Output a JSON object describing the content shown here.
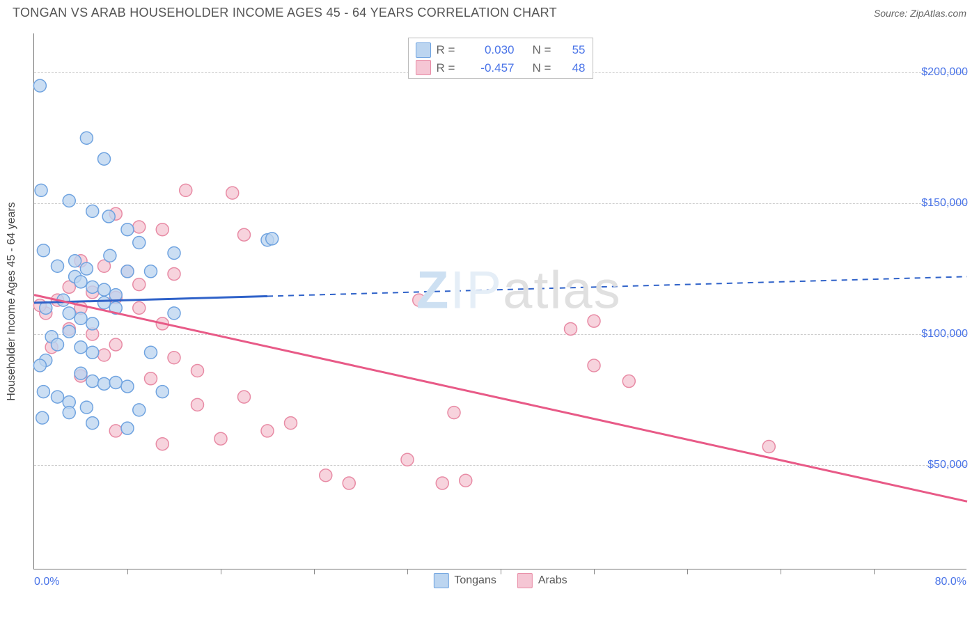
{
  "header": {
    "title": "TONGAN VS ARAB HOUSEHOLDER INCOME AGES 45 - 64 YEARS CORRELATION CHART",
    "source": "Source: ZipAtlas.com"
  },
  "watermark": {
    "z": "Z",
    "ip": "IP",
    "rest": "atlas"
  },
  "chart": {
    "type": "scatter",
    "background_color": "#ffffff",
    "grid_color": "#cccccc",
    "axis_color": "#777777",
    "text_color": "#555555",
    "value_color": "#4a74e8",
    "xlim": [
      0,
      80
    ],
    "ylim": [
      10000,
      215000
    ],
    "x_axis": {
      "label_left": "0.0%",
      "label_right": "80.0%",
      "tick_positions": [
        8,
        16,
        24,
        32,
        40,
        48,
        56,
        64,
        72
      ]
    },
    "y_axis": {
      "title": "Householder Income Ages 45 - 64 years",
      "gridlines": [
        50000,
        100000,
        150000,
        200000
      ],
      "labels": [
        "$50,000",
        "$100,000",
        "$150,000",
        "$200,000"
      ]
    },
    "series": [
      {
        "name": "Tongans",
        "color_stroke": "#6fa3e0",
        "color_fill": "#bcd5f0",
        "line_color": "#2f62c9",
        "marker_radius": 9,
        "stroke_width": 1.5,
        "opacity": 0.78,
        "R": "0.030",
        "N": "55",
        "trend": {
          "x1": 0,
          "y1": 112000,
          "x2": 80,
          "y2": 122000,
          "solid_until_x": 20
        },
        "points": [
          [
            0.5,
            195000
          ],
          [
            4.5,
            175000
          ],
          [
            6,
            167000
          ],
          [
            0.6,
            155000
          ],
          [
            3,
            151000
          ],
          [
            5,
            147000
          ],
          [
            6.4,
            145000
          ],
          [
            8,
            140000
          ],
          [
            9,
            135000
          ],
          [
            12,
            131000
          ],
          [
            20,
            136000
          ],
          [
            20.4,
            136500
          ],
          [
            0.8,
            132000
          ],
          [
            2,
            126000
          ],
          [
            3.5,
            122000
          ],
          [
            4,
            120000
          ],
          [
            5,
            118000
          ],
          [
            6,
            117000
          ],
          [
            7,
            115000
          ],
          [
            3,
            108000
          ],
          [
            4,
            106000
          ],
          [
            5,
            104000
          ],
          [
            3,
            101000
          ],
          [
            6,
            112000
          ],
          [
            7,
            110000
          ],
          [
            1.5,
            99000
          ],
          [
            2,
            96000
          ],
          [
            4,
            95000
          ],
          [
            5,
            93000
          ],
          [
            10,
            93000
          ],
          [
            1,
            110000
          ],
          [
            2.5,
            113000
          ],
          [
            3.5,
            128000
          ],
          [
            4.5,
            125000
          ],
          [
            8,
            124000
          ],
          [
            1,
            90000
          ],
          [
            0.5,
            88000
          ],
          [
            4,
            85000
          ],
          [
            5,
            82000
          ],
          [
            6,
            81000
          ],
          [
            7,
            81500
          ],
          [
            8,
            80000
          ],
          [
            0.8,
            78000
          ],
          [
            2,
            76000
          ],
          [
            3,
            74000
          ],
          [
            4.5,
            72000
          ],
          [
            3,
            70000
          ],
          [
            0.7,
            68000
          ],
          [
            5,
            66000
          ],
          [
            8,
            64000
          ],
          [
            9,
            71000
          ],
          [
            11,
            78000
          ],
          [
            12,
            108000
          ],
          [
            6.5,
            130000
          ],
          [
            10,
            124000
          ]
        ]
      },
      {
        "name": "Arabs",
        "color_stroke": "#e88ba5",
        "color_fill": "#f5c6d4",
        "line_color": "#e85a87",
        "marker_radius": 9,
        "stroke_width": 1.5,
        "opacity": 0.78,
        "R": "-0.457",
        "N": "48",
        "trend": {
          "x1": 0,
          "y1": 115000,
          "x2": 80,
          "y2": 36000,
          "solid_until_x": 80
        },
        "points": [
          [
            13,
            155000
          ],
          [
            17,
            154000
          ],
          [
            7,
            146000
          ],
          [
            9,
            141000
          ],
          [
            11,
            140000
          ],
          [
            18,
            138000
          ],
          [
            4,
            128000
          ],
          [
            6,
            126000
          ],
          [
            8,
            124000
          ],
          [
            12,
            123000
          ],
          [
            3,
            118000
          ],
          [
            5,
            116000
          ],
          [
            7,
            114000
          ],
          [
            9,
            110000
          ],
          [
            33,
            113000
          ],
          [
            1,
            108000
          ],
          [
            2,
            113000
          ],
          [
            4,
            110000
          ],
          [
            9,
            119000
          ],
          [
            11,
            104000
          ],
          [
            48,
            105000
          ],
          [
            46,
            102000
          ],
          [
            3,
            102000
          ],
          [
            5,
            100000
          ],
          [
            7,
            96000
          ],
          [
            48,
            88000
          ],
          [
            51,
            82000
          ],
          [
            1.5,
            95000
          ],
          [
            0.5,
            111000
          ],
          [
            6,
            92000
          ],
          [
            12,
            91000
          ],
          [
            14,
            86000
          ],
          [
            10,
            83000
          ],
          [
            4,
            84000
          ],
          [
            18,
            76000
          ],
          [
            14,
            73000
          ],
          [
            36,
            70000
          ],
          [
            22,
            66000
          ],
          [
            20,
            63000
          ],
          [
            16,
            60000
          ],
          [
            11,
            58000
          ],
          [
            63,
            57000
          ],
          [
            32,
            52000
          ],
          [
            25,
            46000
          ],
          [
            27,
            43000
          ],
          [
            35,
            43000
          ],
          [
            37,
            44000
          ],
          [
            7,
            63000
          ]
        ]
      }
    ],
    "legend_bottom": [
      "Tongans",
      "Arabs"
    ]
  }
}
